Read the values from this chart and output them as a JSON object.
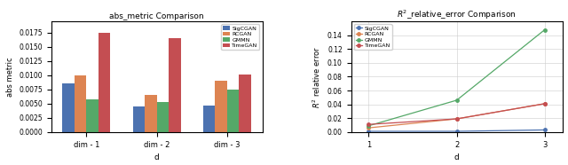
{
  "bar_chart": {
    "title": "abs_metric Comparison",
    "xlabel": "d",
    "ylabel": "abs metric",
    "categories": [
      "dim - 1",
      "dim - 2",
      "dim - 3"
    ],
    "models": [
      "SigCGAN",
      "RCGAN",
      "GMMN",
      "TimeGAN"
    ],
    "colors": [
      "#4c72b0",
      "#dd8452",
      "#55a868",
      "#c44e52"
    ],
    "values": [
      [
        0.0085,
        0.01,
        0.0057,
        0.0175
      ],
      [
        0.0045,
        0.0065,
        0.0053,
        0.0165
      ],
      [
        0.0047,
        0.009,
        0.0075,
        0.0102
      ]
    ],
    "ylim": [
      0,
      0.0195
    ],
    "yticks": [
      0.0,
      0.0025,
      0.005,
      0.0075,
      0.01,
      0.0125,
      0.015,
      0.0175
    ]
  },
  "line_chart": {
    "title": "$R^2$_relative_error Comparison",
    "xlabel": "d",
    "ylabel": "$R^2$ relative error",
    "x": [
      1,
      2,
      3
    ],
    "models": [
      "SigCGAN",
      "RCGAN",
      "GMMN",
      "TimeGAN"
    ],
    "colors": [
      "#4c72b0",
      "#dd8452",
      "#55a868",
      "#c44e52"
    ],
    "values": [
      [
        0.001,
        0.001,
        0.003
      ],
      [
        0.006,
        0.019,
        0.041
      ],
      [
        0.009,
        0.046,
        0.148
      ],
      [
        0.011,
        0.019,
        0.041
      ]
    ],
    "ylim": [
      0.0,
      0.16
    ],
    "yticks": [
      0.0,
      0.02,
      0.04,
      0.06,
      0.08,
      0.1,
      0.12,
      0.14
    ]
  }
}
